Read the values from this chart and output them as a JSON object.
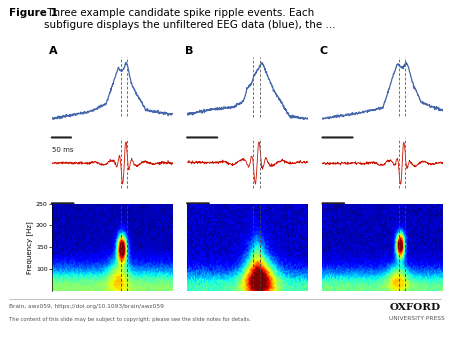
{
  "title_bold": "Figure 1",
  "title_text": " Three example candidate spike ripple events. Each\nsubfigure displays the unfiltered EEG data (blue), the ...",
  "panel_labels": [
    "A",
    "B",
    "C"
  ],
  "footer_left1": "Brain, awz059, https://doi.org/10.1093/brain/awz059",
  "footer_left2": "The content of this slide may be subject to copyright: please see the slide notes for details.",
  "footer_right1": "OXFORD",
  "footer_right2": "UNIVERSITY PRESS",
  "scalebar_label": "50 ms",
  "ylabel_spectrogram": "Frequency [Hz]",
  "yticks_spectrogram": [
    100,
    150,
    200,
    250
  ],
  "eeg_color": "#4466aa",
  "ripple_color": "#cc1100",
  "background": "#ffffff",
  "dashed_line_color": "#666666",
  "scalebar_color": "#222222",
  "spectrogram_dashed_color": "#444444"
}
